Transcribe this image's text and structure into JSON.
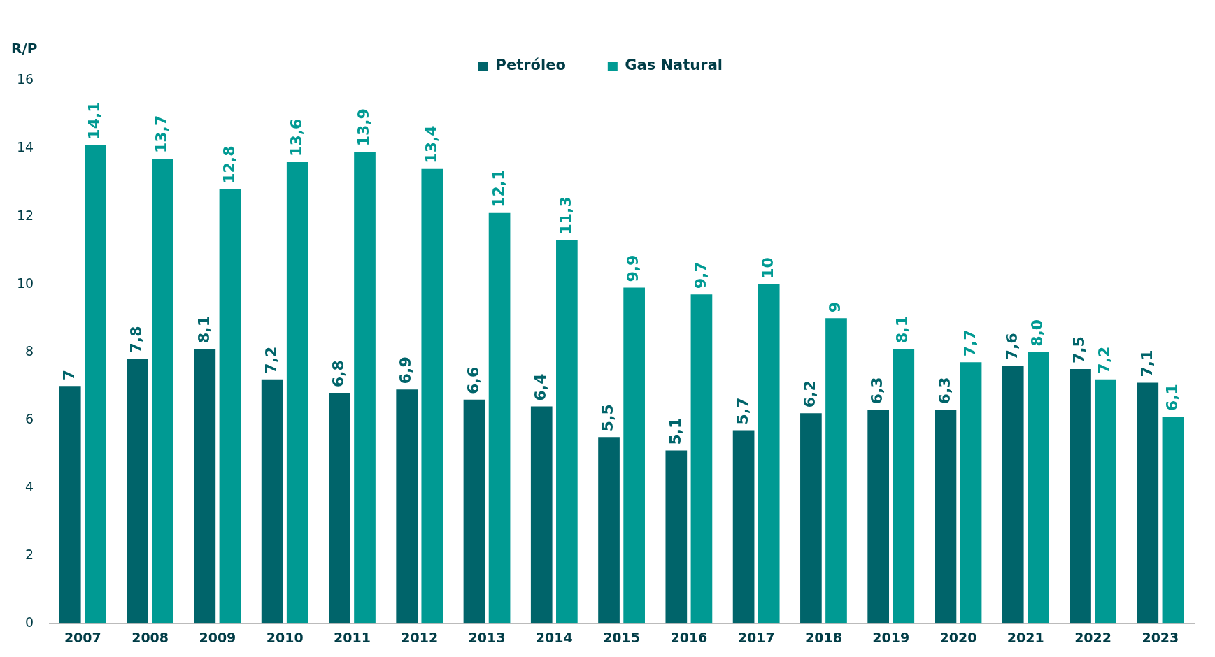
{
  "chart_data": {
    "type": "bar",
    "ylabel": "R/P",
    "categories": [
      "2007",
      "2008",
      "2009",
      "2010",
      "2011",
      "2012",
      "2013",
      "2014",
      "2015",
      "2016",
      "2017",
      "2018",
      "2019",
      "2020",
      "2021",
      "2022",
      "2023"
    ],
    "series": [
      {
        "name": "Petróleo",
        "color": "#00646a",
        "values": [
          7,
          7.8,
          8.1,
          7.2,
          6.8,
          6.9,
          6.6,
          6.4,
          5.5,
          5.1,
          5.7,
          6.2,
          6.3,
          6.3,
          7.6,
          7.5,
          7.1
        ],
        "value_labels": [
          "7",
          "7,8",
          "8,1",
          "7,2",
          "6,8",
          "6,9",
          "6,6",
          "6,4",
          "5,5",
          "5,1",
          "5,7",
          "6,2",
          "6,3",
          "6,3",
          "7,6",
          "7,5",
          "7,1"
        ]
      },
      {
        "name": "Gas Natural",
        "color": "#009a93",
        "values": [
          14.1,
          13.7,
          12.8,
          13.6,
          13.9,
          13.4,
          12.1,
          11.3,
          9.9,
          9.7,
          10,
          9,
          8.1,
          7.7,
          8.0,
          7.2,
          6.1
        ],
        "value_labels": [
          "14,1",
          "13,7",
          "12,8",
          "13,6",
          "13,9",
          "13,4",
          "12,1",
          "11,3",
          "9,9",
          "9,7",
          "10",
          "9",
          "8,1",
          "7,7",
          "8,0",
          "7,2",
          "6,1"
        ]
      }
    ],
    "ylim": [
      0,
      16
    ],
    "yticks": [
      0,
      2,
      4,
      6,
      8,
      10,
      12,
      14,
      16
    ],
    "grid": false,
    "legend": "top"
  }
}
